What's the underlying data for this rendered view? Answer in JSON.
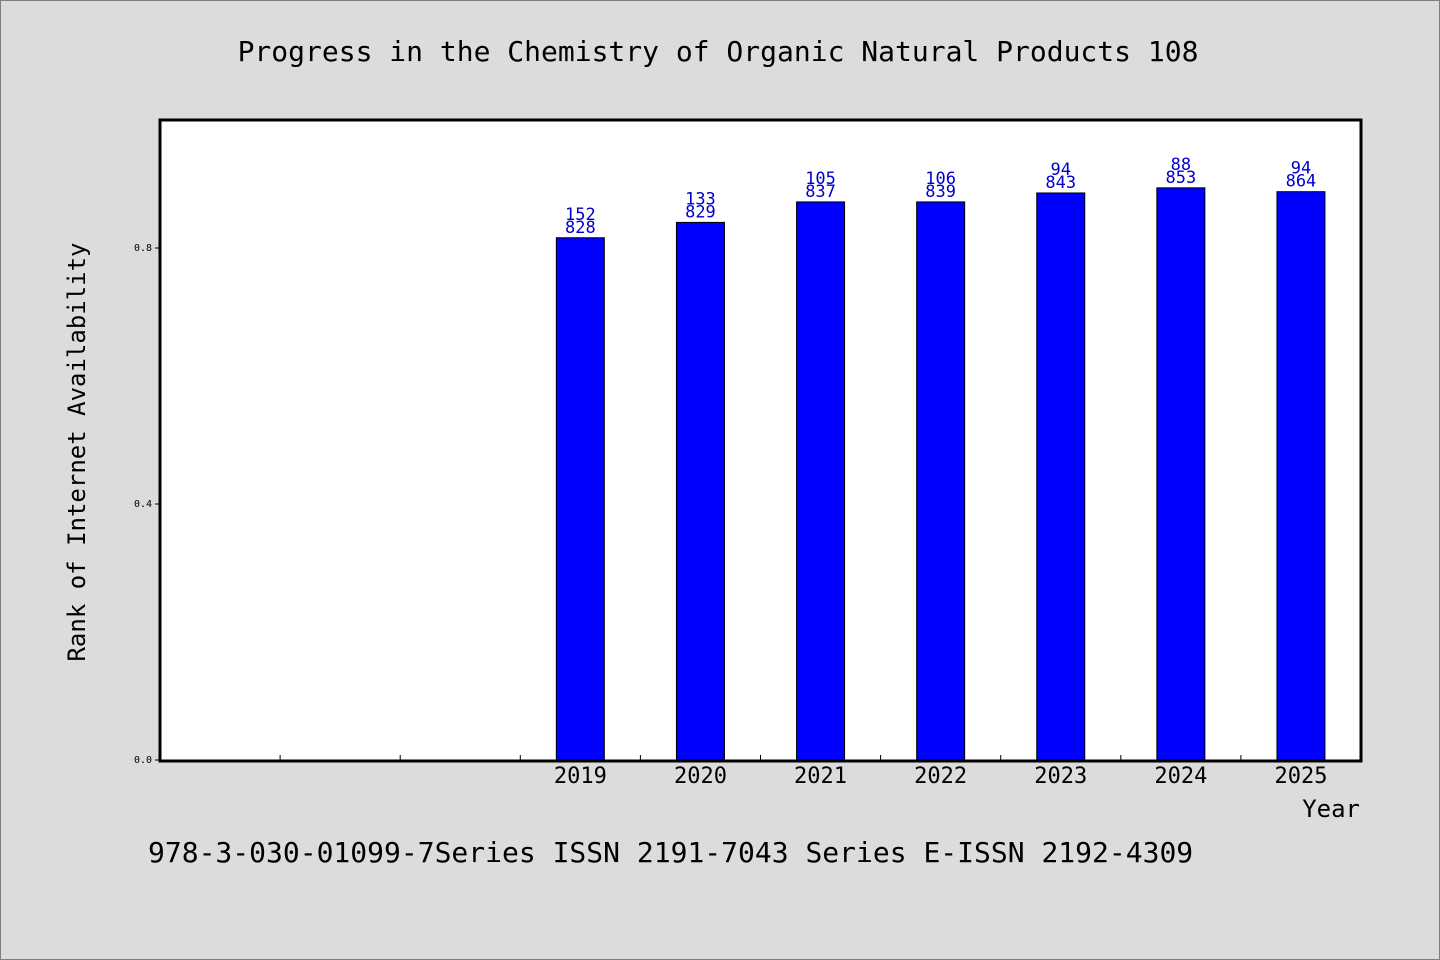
{
  "chart_data": {
    "type": "bar",
    "title": "Progress in the Chemistry of Organic Natural Products 108",
    "xlabel": "Year",
    "ylabel": "Rank of Internet Availability",
    "x_slots": 10,
    "categories": [
      "2019",
      "2020",
      "2021",
      "2022",
      "2023",
      "2024",
      "2025"
    ],
    "values": [
      0.816,
      0.84,
      0.872,
      0.872,
      0.886,
      0.894,
      0.888
    ],
    "labels_top": [
      "152",
      "133",
      "105",
      "106",
      "94",
      "88",
      "94"
    ],
    "labels_bottom": [
      "828",
      "829",
      "837",
      "839",
      "843",
      "853",
      "864"
    ],
    "yticks": [
      "0.0",
      "0.4",
      "0.8"
    ],
    "ytick_values": [
      0.0,
      0.4,
      0.8
    ],
    "ylim": [
      0,
      1.0
    ],
    "grid": false,
    "bar_color": "#0000ff",
    "label_color": "#0000cc"
  },
  "footer": "978-3-030-01099-7Series ISSN 2191-7043 Series E-ISSN 2192-4309"
}
